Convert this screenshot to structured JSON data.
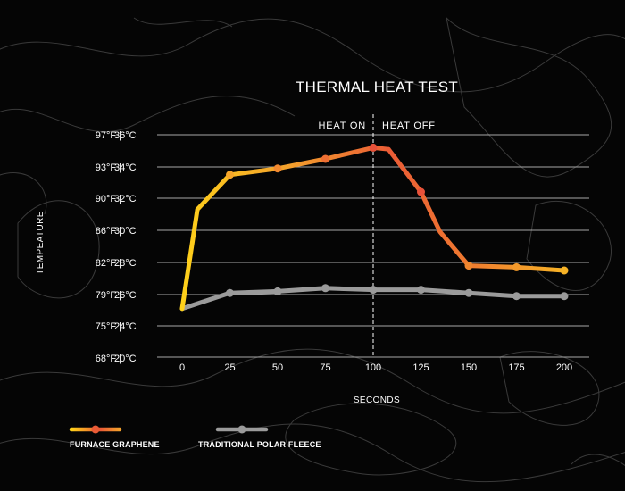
{
  "chart_data": {
    "type": "line",
    "title": "THERMAL HEAT TEST",
    "xlabel": "SECONDS",
    "ylabel": "TEMPEATURE",
    "xlim": [
      0,
      200
    ],
    "ylim": [
      20,
      36
    ],
    "x_ticks": [
      0,
      25,
      50,
      75,
      100,
      125,
      150,
      175,
      200
    ],
    "y_ticks": [
      {
        "value": 36,
        "c": "36°C",
        "f": "97°F |"
      },
      {
        "value": 34,
        "c": "34°C",
        "f": "93°F |"
      },
      {
        "value": 32,
        "c": "32°C",
        "f": "90°F |"
      },
      {
        "value": 30,
        "c": "30°C",
        "f": "86°F |"
      },
      {
        "value": 28,
        "c": "28°C",
        "f": "82°F |"
      },
      {
        "value": 26,
        "c": "26°C",
        "f": "79°F |"
      },
      {
        "value": 24,
        "c": "24°C",
        "f": "75°F |"
      },
      {
        "value": 20,
        "c": "20°C",
        "f": "68°F |"
      }
    ],
    "grid": true,
    "legend_position": "bottom-left",
    "annotations": {
      "divider_x": 100,
      "heat_on": "HEAT ON",
      "heat_off": "HEAT OFF"
    },
    "series": [
      {
        "name": "FURNACE GRAPHENE",
        "colors": [
          "#ffd11a",
          "#f3a12c",
          "#ea5b36"
        ],
        "points": [
          {
            "x": 0,
            "y": 25.1,
            "marker": false
          },
          {
            "x": 8,
            "y": 31.3,
            "marker": false
          },
          {
            "x": 25,
            "y": 33.5,
            "marker": true
          },
          {
            "x": 50,
            "y": 33.9,
            "marker": true
          },
          {
            "x": 75,
            "y": 34.5,
            "marker": true
          },
          {
            "x": 100,
            "y": 35.2,
            "marker": true
          },
          {
            "x": 108,
            "y": 35.1,
            "marker": false
          },
          {
            "x": 125,
            "y": 32.4,
            "marker": true
          },
          {
            "x": 135,
            "y": 29.9,
            "marker": false
          },
          {
            "x": 150,
            "y": 27.8,
            "marker": true
          },
          {
            "x": 175,
            "y": 27.7,
            "marker": true
          },
          {
            "x": 200,
            "y": 27.5,
            "marker": true
          }
        ]
      },
      {
        "name": "TRADITIONAL POLAR FLEECE",
        "colors": [
          "#9b9b9b"
        ],
        "points": [
          {
            "x": 0,
            "y": 25.1,
            "marker": false
          },
          {
            "x": 25,
            "y": 26.1,
            "marker": true
          },
          {
            "x": 50,
            "y": 26.2,
            "marker": true
          },
          {
            "x": 75,
            "y": 26.4,
            "marker": true
          },
          {
            "x": 100,
            "y": 26.3,
            "marker": true
          },
          {
            "x": 125,
            "y": 26.3,
            "marker": true
          },
          {
            "x": 150,
            "y": 26.1,
            "marker": true
          },
          {
            "x": 175,
            "y": 25.9,
            "marker": true
          },
          {
            "x": 200,
            "y": 25.9,
            "marker": true
          }
        ]
      }
    ]
  }
}
